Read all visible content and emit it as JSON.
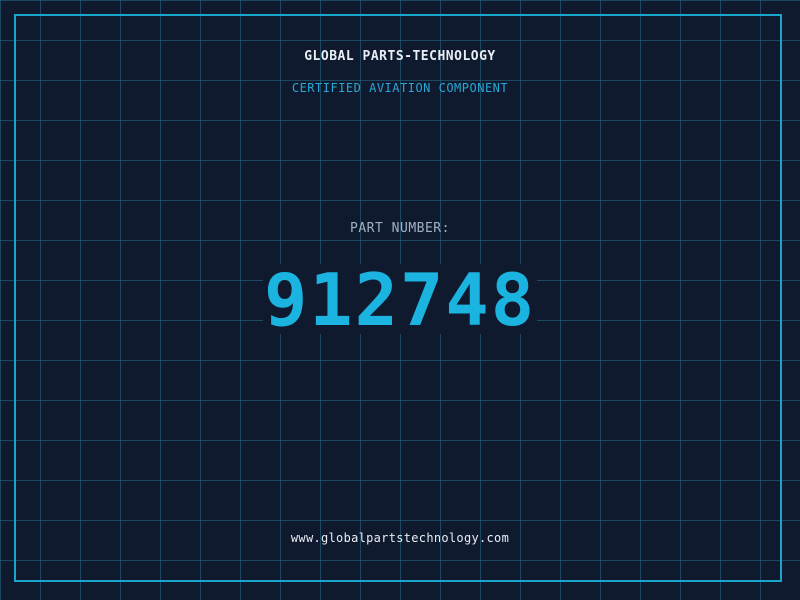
{
  "header": {
    "company": "GLOBAL PARTS-TECHNOLOGY",
    "tagline": "CERTIFIED AVIATION COMPONENT"
  },
  "part": {
    "label": "PART NUMBER:",
    "number": "912748"
  },
  "footer": {
    "url": "www.globalpartstechnology.com"
  },
  "colors": {
    "background": "#101a2e",
    "grid": "#286e8c",
    "accent": "#1bb3e0",
    "frame": "#1aa6cc",
    "text": "#e8eef5",
    "muted": "#9fb1c4"
  }
}
